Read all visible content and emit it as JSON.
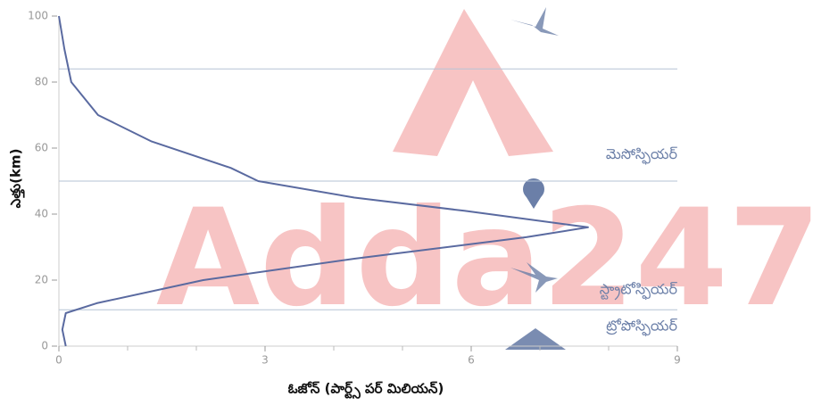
{
  "watermark": "Adda247",
  "chart_data": {
    "type": "line",
    "x_label": "ఓజోన్ (పార్ట్స్ పర్ మిలియన్)",
    "y_label": "ఎత్తు(km)",
    "x": [
      0.1,
      0.05,
      0.1,
      0.55,
      2.1,
      4.3,
      6.8,
      7.7,
      5.9,
      4.3,
      2.9,
      2.5,
      1.35,
      0.57,
      0.18,
      0.08,
      0
    ],
    "values": [
      0,
      5,
      10,
      13,
      20,
      26.5,
      33,
      36,
      41,
      45,
      50,
      54,
      62,
      70,
      80,
      90,
      100
    ],
    "color": "#5a6aa0",
    "xlim": [
      0,
      9
    ],
    "xticks": [
      0,
      3,
      6,
      9
    ],
    "x_minor_ticks": [
      1,
      2,
      4,
      5,
      7,
      8
    ],
    "ylim": [
      0,
      100
    ],
    "yticks": [
      0,
      20,
      40,
      60,
      80,
      100
    ],
    "boundaries": [
      11,
      50,
      84
    ],
    "boundary_color": "#b6c3d6",
    "layers": [
      {
        "name": "మెసోస్ఫియర్",
        "altitude": 58
      },
      {
        "name": "స్ట్రాటోస్ఫియర్",
        "altitude": 17
      },
      {
        "name": "ట్రోపోస్ఫియర్",
        "altitude": 6
      }
    ]
  }
}
